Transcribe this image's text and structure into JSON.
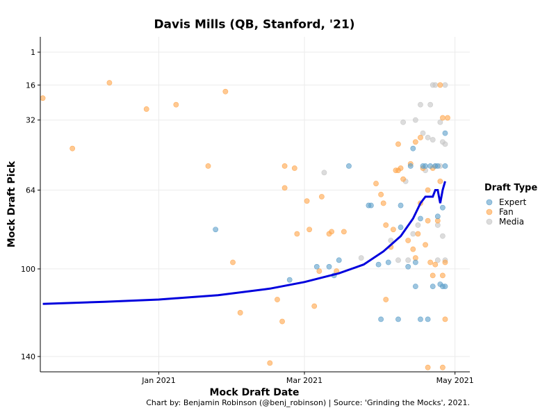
{
  "chart_data": {
    "type": "scatter",
    "title": "Davis Mills (QB, Stanford, '21)",
    "xlabel": "Mock Draft Date",
    "ylabel": "Mock Draft Pick",
    "caption": "Chart by: Benjamin Robinson (@benj_robinson) | Source: 'Grinding the Mocks', 2021.",
    "x_ticks": [
      {
        "date": "2021-01-01",
        "label": "Jan 2021"
      },
      {
        "date": "2021-03-01",
        "label": "Mar 2021"
      },
      {
        "date": "2021-05-01",
        "label": "May 2021"
      }
    ],
    "y_ticks": [
      1,
      16,
      32,
      64,
      100,
      140
    ],
    "xlim": [
      "2020-11-14",
      "2021-05-07"
    ],
    "ylim": [
      147,
      -6
    ],
    "y_reversed": true,
    "grid": true,
    "legend": {
      "title": "Draft Type",
      "placement": "right",
      "entries": [
        {
          "name": "Expert",
          "color": "#5b9ec9"
        },
        {
          "name": "Fan",
          "color": "#ffa54a"
        },
        {
          "name": "Media",
          "color": "#c4c4c4"
        }
      ]
    },
    "trend": {
      "color": "#0000dd",
      "points": [
        [
          "2020-11-15",
          116
        ],
        [
          "2020-12-10",
          115
        ],
        [
          "2021-01-01",
          114
        ],
        [
          "2021-01-25",
          112
        ],
        [
          "2021-02-15",
          109
        ],
        [
          "2021-03-01",
          106
        ],
        [
          "2021-03-15",
          102
        ],
        [
          "2021-03-25",
          98
        ],
        [
          "2021-04-02",
          92
        ],
        [
          "2021-04-09",
          85
        ],
        [
          "2021-04-14",
          77
        ],
        [
          "2021-04-17",
          70
        ],
        [
          "2021-04-19",
          67
        ],
        [
          "2021-04-21",
          67
        ],
        [
          "2021-04-22",
          67
        ],
        [
          "2021-04-23",
          64
        ],
        [
          "2021-04-24",
          64
        ],
        [
          "2021-04-25",
          70
        ],
        [
          "2021-04-26",
          64
        ],
        [
          "2021-04-27",
          60
        ]
      ]
    },
    "series": [
      {
        "name": "Expert",
        "points": [
          [
            "2021-01-24",
            82
          ],
          [
            "2021-02-23",
            105
          ],
          [
            "2021-03-06",
            99
          ],
          [
            "2021-03-11",
            99
          ],
          [
            "2021-03-13",
            103
          ],
          [
            "2021-03-15",
            96
          ],
          [
            "2021-03-19",
            53
          ],
          [
            "2021-03-27",
            71
          ],
          [
            "2021-03-28",
            71
          ],
          [
            "2021-03-31",
            98
          ],
          [
            "2021-04-01",
            123
          ],
          [
            "2021-04-04",
            97
          ],
          [
            "2021-04-08",
            123
          ],
          [
            "2021-04-09",
            71
          ],
          [
            "2021-04-09",
            81
          ],
          [
            "2021-04-12",
            99
          ],
          [
            "2021-04-13",
            53
          ],
          [
            "2021-04-14",
            45
          ],
          [
            "2021-04-15",
            97
          ],
          [
            "2021-04-15",
            108
          ],
          [
            "2021-04-17",
            123
          ],
          [
            "2021-04-17",
            77
          ],
          [
            "2021-04-18",
            53
          ],
          [
            "2021-04-19",
            53
          ],
          [
            "2021-04-20",
            123
          ],
          [
            "2021-04-21",
            53
          ],
          [
            "2021-04-22",
            108
          ],
          [
            "2021-04-23",
            53
          ],
          [
            "2021-04-24",
            53
          ],
          [
            "2021-04-24",
            76
          ],
          [
            "2021-04-25",
            107
          ],
          [
            "2021-04-26",
            108
          ],
          [
            "2021-04-26",
            72
          ],
          [
            "2021-04-27",
            38
          ],
          [
            "2021-04-27",
            53
          ],
          [
            "2021-04-27",
            108
          ]
        ]
      },
      {
        "name": "Fan",
        "points": [
          [
            "2020-11-15",
            22
          ],
          [
            "2020-11-27",
            45
          ],
          [
            "2020-12-12",
            15
          ],
          [
            "2020-12-27",
            27
          ],
          [
            "2021-01-08",
            25
          ],
          [
            "2021-01-21",
            53
          ],
          [
            "2021-01-28",
            19
          ],
          [
            "2021-01-31",
            97
          ],
          [
            "2021-02-03",
            120
          ],
          [
            "2021-02-15",
            143
          ],
          [
            "2021-02-18",
            114
          ],
          [
            "2021-02-20",
            124
          ],
          [
            "2021-02-21",
            53
          ],
          [
            "2021-02-21",
            63
          ],
          [
            "2021-02-25",
            54
          ],
          [
            "2021-02-26",
            84
          ],
          [
            "2021-03-02",
            69
          ],
          [
            "2021-03-03",
            82
          ],
          [
            "2021-03-05",
            117
          ],
          [
            "2021-03-07",
            101
          ],
          [
            "2021-03-08",
            67
          ],
          [
            "2021-03-11",
            84
          ],
          [
            "2021-03-12",
            83
          ],
          [
            "2021-03-14",
            101
          ],
          [
            "2021-03-17",
            83
          ],
          [
            "2021-03-30",
            61
          ],
          [
            "2021-04-01",
            66
          ],
          [
            "2021-04-02",
            70
          ],
          [
            "2021-04-03",
            80
          ],
          [
            "2021-04-03",
            114
          ],
          [
            "2021-04-06",
            82
          ],
          [
            "2021-04-07",
            55
          ],
          [
            "2021-04-08",
            55
          ],
          [
            "2021-04-08",
            43
          ],
          [
            "2021-04-09",
            54
          ],
          [
            "2021-04-12",
            87
          ],
          [
            "2021-04-13",
            52
          ],
          [
            "2021-04-14",
            91
          ],
          [
            "2021-04-15",
            95
          ],
          [
            "2021-04-16",
            84
          ],
          [
            "2021-04-17",
            70
          ],
          [
            "2021-04-18",
            54
          ],
          [
            "2021-04-19",
            89
          ],
          [
            "2021-04-20",
            78
          ],
          [
            "2021-04-21",
            97
          ],
          [
            "2021-04-22",
            103
          ],
          [
            "2021-04-23",
            98
          ],
          [
            "2021-04-24",
            78
          ],
          [
            "2021-04-25",
            60
          ],
          [
            "2021-04-26",
            103
          ],
          [
            "2021-04-26",
            31
          ],
          [
            "2021-04-27",
            123
          ],
          [
            "2021-04-27",
            97
          ],
          [
            "2021-04-28",
            31
          ],
          [
            "2021-04-26",
            145
          ],
          [
            "2021-04-20",
            145
          ],
          [
            "2021-04-25",
            16
          ],
          [
            "2021-04-20",
            64
          ],
          [
            "2021-04-15",
            42
          ],
          [
            "2021-04-17",
            40
          ],
          [
            "2021-04-10",
            59
          ],
          [
            "2021-04-05",
            90
          ],
          [
            "2021-04-22",
            54
          ]
        ]
      },
      {
        "name": "Media",
        "points": [
          [
            "2021-03-09",
            56
          ],
          [
            "2021-03-24",
            95
          ],
          [
            "2021-04-05",
            87
          ],
          [
            "2021-04-08",
            96
          ],
          [
            "2021-04-10",
            33
          ],
          [
            "2021-04-11",
            60
          ],
          [
            "2021-04-12",
            96
          ],
          [
            "2021-04-14",
            84
          ],
          [
            "2021-04-15",
            32
          ],
          [
            "2021-04-16",
            80
          ],
          [
            "2021-04-17",
            25
          ],
          [
            "2021-04-18",
            38
          ],
          [
            "2021-04-19",
            55
          ],
          [
            "2021-04-20",
            40
          ],
          [
            "2021-04-21",
            25
          ],
          [
            "2021-04-22",
            16
          ],
          [
            "2021-04-22",
            41
          ],
          [
            "2021-04-23",
            16
          ],
          [
            "2021-04-23",
            53
          ],
          [
            "2021-04-24",
            80
          ],
          [
            "2021-04-24",
            96
          ],
          [
            "2021-04-25",
            33
          ],
          [
            "2021-04-26",
            42
          ],
          [
            "2021-04-26",
            85
          ],
          [
            "2021-04-27",
            43
          ],
          [
            "2021-04-27",
            96
          ],
          [
            "2021-04-27",
            16
          ],
          [
            "2021-04-25",
            53
          ]
        ]
      }
    ]
  }
}
